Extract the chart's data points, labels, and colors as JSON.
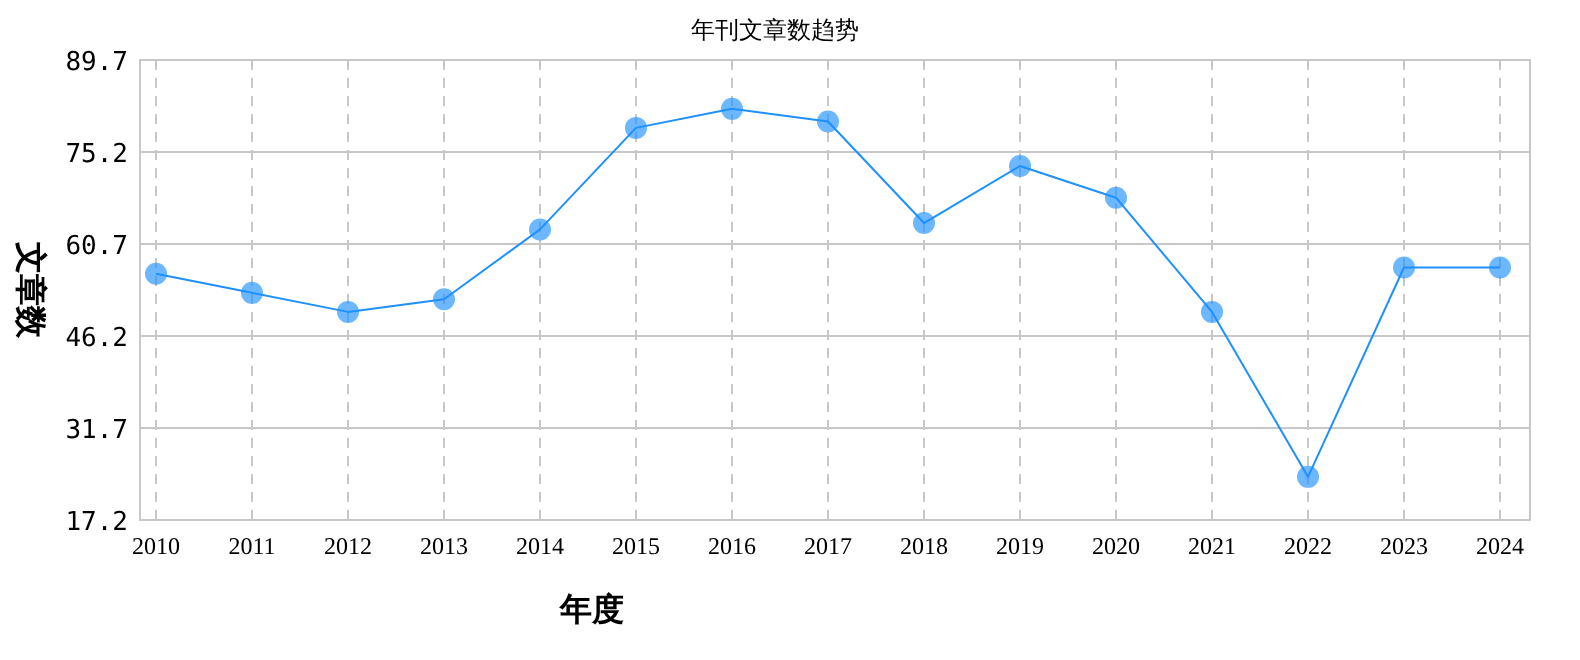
{
  "chart_data": {
    "type": "line",
    "title": "年刊文章数趋势",
    "xlabel": "年度",
    "ylabel": "文章数",
    "categories": [
      "2010",
      "2011",
      "2012",
      "2013",
      "2014",
      "2015",
      "2016",
      "2017",
      "2018",
      "2019",
      "2020",
      "2021",
      "2022",
      "2023",
      "2024"
    ],
    "series": [
      {
        "color": "#1e90ff",
        "values": [
          56,
          53,
          50,
          52,
          63,
          79,
          82,
          80,
          64,
          73,
          68,
          50,
          24,
          57,
          57
        ]
      }
    ],
    "ylim": [
      17.2,
      89.7
    ],
    "yticks": [
      {
        "value": 17.2,
        "label": "17.2"
      },
      {
        "value": 31.7,
        "label": "31.7"
      },
      {
        "value": 46.2,
        "label": "46.2"
      },
      {
        "value": 60.7,
        "label": "60.7"
      },
      {
        "value": 75.2,
        "label": "75.2"
      },
      {
        "value": 89.7,
        "label": "89.7"
      }
    ],
    "grid": true,
    "marker": "circle",
    "line_style": "solid"
  }
}
